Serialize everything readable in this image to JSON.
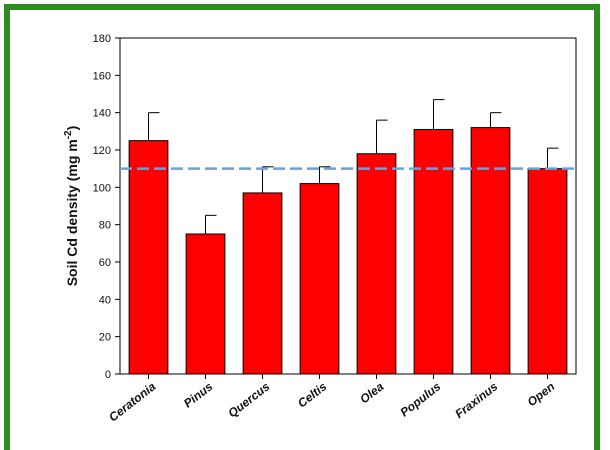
{
  "chart_data": {
    "type": "bar",
    "categories": [
      "Ceratonia",
      "Pinus",
      "Quercus",
      "Celtis",
      "Olea",
      "Populus",
      "Fraxinus",
      "Open"
    ],
    "values": [
      125,
      75,
      97,
      102,
      118,
      131,
      132,
      110
    ],
    "errors": [
      15,
      10,
      14,
      9,
      18,
      16,
      8,
      11
    ],
    "reference_line": 110,
    "ylabel_main": "Soil Cd density (mg m",
    "ylabel_sup": "-2",
    "ylabel_end": ")",
    "ylim": [
      0,
      180
    ],
    "yticks": [
      "0",
      "20",
      "40",
      "60",
      "80",
      "100",
      "120",
      "140",
      "160",
      "180"
    ],
    "bar_color": "#ff0000",
    "reference_line_color": "#6f9fd8",
    "grid": false
  },
  "colors": {
    "frame": "#2e8b1f"
  }
}
